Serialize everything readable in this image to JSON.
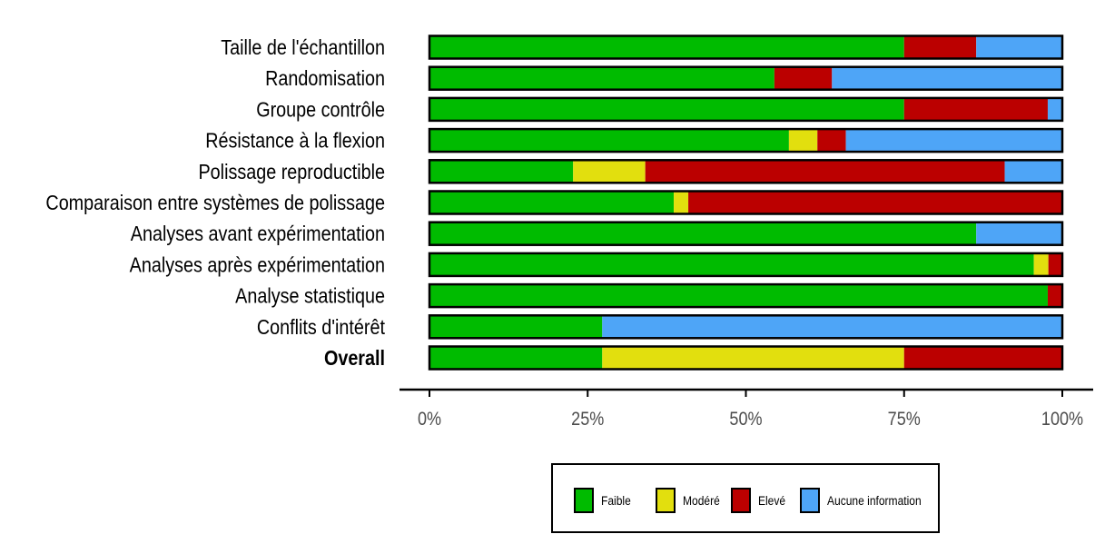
{
  "chart_data": {
    "type": "bar",
    "orientation": "horizontal",
    "stacked": true,
    "categories": [
      "Taille de l'échantillon",
      "Randomisation",
      "Groupe contrôle",
      "Résistance à la flexion",
      "Polissage reproductible",
      "Comparaison entre systèmes de polissage",
      "Analyses avant expérimentation",
      "Analyses après expérimentation",
      "Analyse statistique",
      "Conflits d'intérêt",
      "Overall"
    ],
    "bold_categories": [
      "Overall"
    ],
    "series": [
      {
        "name": "Faible",
        "color": "#00bb00",
        "values": [
          75.0,
          54.5,
          75.0,
          56.8,
          22.7,
          38.6,
          86.4,
          95.5,
          97.7,
          27.3,
          27.3
        ]
      },
      {
        "name": "Modéré",
        "color": "#e2df0e",
        "values": [
          0,
          0,
          0,
          4.5,
          11.4,
          2.3,
          0,
          2.3,
          0,
          0,
          47.7
        ]
      },
      {
        "name": "Elevé",
        "color": "#bb0000",
        "values": [
          11.4,
          9.1,
          22.7,
          4.5,
          56.8,
          59.1,
          0,
          2.2,
          2.3,
          0,
          25.0
        ]
      },
      {
        "name": "Aucune information",
        "color": "#4ea5f7",
        "values": [
          13.6,
          36.4,
          2.3,
          34.2,
          9.1,
          0,
          13.6,
          0,
          0,
          72.7,
          0
        ]
      }
    ],
    "xlim": [
      0,
      100
    ],
    "xticks": [
      0,
      25,
      50,
      75,
      100
    ],
    "xtick_labels": [
      "0%",
      "25%",
      "50%",
      "75%",
      "100%"
    ],
    "grid": false,
    "legend_position": "bottom"
  }
}
